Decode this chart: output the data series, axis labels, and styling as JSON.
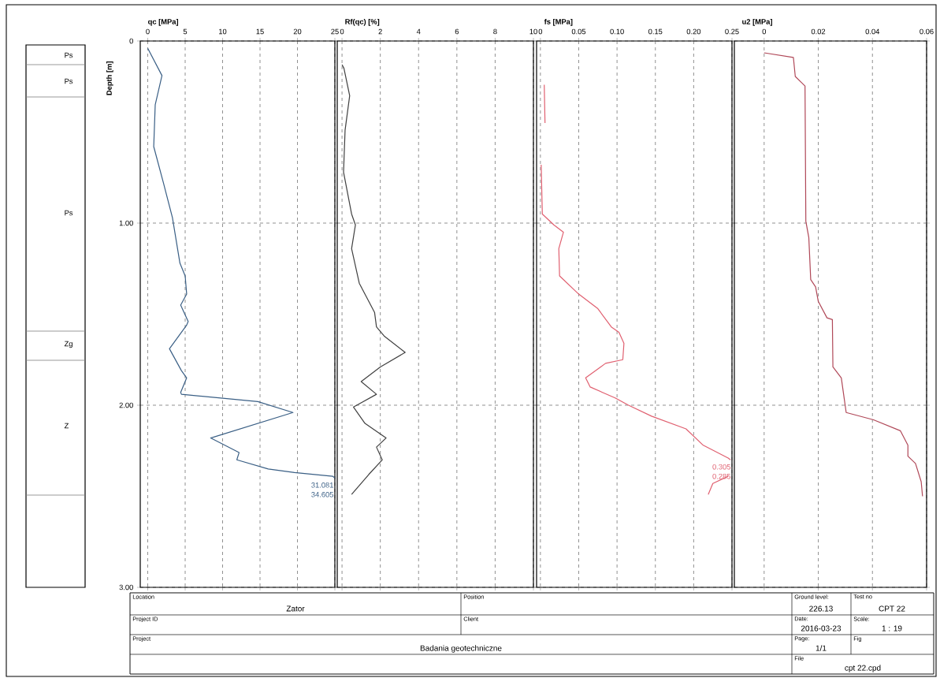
{
  "chart_data": [
    {
      "type": "other",
      "annotations": [
        "Ps",
        "Ps",
        "Ps",
        "Zg",
        "Z"
      ]
    },
    {
      "type": "line",
      "xlabel": "qc [MPa]",
      "ylabel": "Depth [m]",
      "xlim": [
        -1,
        25
      ],
      "ylim": [
        3,
        0
      ],
      "xticks": [
        0,
        5,
        10,
        15,
        20,
        25
      ],
      "yticks": [
        {
          "value": 0,
          "label": "0"
        },
        {
          "value": 1,
          "label": "1.00"
        },
        {
          "value": 2,
          "label": "2.00"
        },
        {
          "value": 3,
          "label": "3.00"
        }
      ],
      "grid": true,
      "color": "#3a5f85",
      "x": [
        0,
        1.9,
        1.0,
        0.8,
        2.1,
        3.3,
        4.3,
        5.0,
        5.2,
        4.4,
        5.4,
        5.2,
        2.9,
        4.5,
        5.2,
        4.4,
        4.5,
        14.7,
        19.4,
        8.4,
        12.2,
        11.9,
        16.1,
        19.6,
        24.7,
        25
      ],
      "values": [
        0.04,
        0.19,
        0.35,
        0.58,
        0.78,
        0.97,
        1.22,
        1.29,
        1.39,
        1.45,
        1.54,
        1.56,
        1.69,
        1.81,
        1.85,
        1.93,
        1.94,
        1.98,
        2.04,
        2.18,
        2.26,
        2.3,
        2.35,
        2.37,
        2.39,
        2.4
      ],
      "annotations": [
        "31.081",
        "34.605"
      ]
    },
    {
      "type": "line",
      "xlabel": "Rf(qc) [%]",
      "xlim": [
        -0.25,
        10
      ],
      "ylim": [
        3,
        0
      ],
      "xticks": [
        0,
        2,
        4,
        6,
        8,
        10
      ],
      "yticks": [
        0,
        1,
        2,
        3
      ],
      "tick_labels": "x",
      "grid": true,
      "color": "#404040",
      "x": [
        0,
        0.1,
        0.4,
        0.16,
        0.08,
        0.5,
        0.7,
        0.5,
        0.9,
        1.7,
        1.8,
        2.2,
        3.3,
        2.0,
        1.0,
        1.8,
        0.6,
        1.2,
        2.3,
        1.8,
        2.1,
        1.4,
        0.5
      ],
      "values": [
        0.13,
        0.15,
        0.3,
        0.49,
        0.72,
        0.95,
        1.01,
        1.14,
        1.33,
        1.49,
        1.57,
        1.62,
        1.71,
        1.79,
        1.87,
        1.94,
        2.01,
        2.1,
        2.18,
        2.23,
        2.3,
        2.38,
        2.49
      ]
    },
    {
      "type": "line",
      "xlabel": "fs [MPa]",
      "xlim": [
        -0.005,
        0.25
      ],
      "ylim": [
        3,
        0
      ],
      "xticks": [
        0,
        0.05,
        {
          "value": 0.1,
          "label": "0.10"
        },
        0.15,
        {
          "value": 0.2,
          "label": "0.20"
        },
        0.25
      ],
      "yticks": [
        0,
        1,
        2,
        3
      ],
      "tick_labels": "x",
      "grid": true,
      "color": "#e06070",
      "x": [
        0.005,
        0.006,
        null,
        0.001,
        0.0025,
        0.0175,
        0.03,
        0.024,
        0.025,
        0.05,
        0.075,
        0.0925,
        0.1025,
        0.109,
        0.1075,
        0.085,
        0.059,
        0.065,
        0.0975,
        0.115,
        0.145,
        0.19,
        0.2125,
        0.245,
        0.248,
        null,
        0.245,
        0.225,
        0.219
      ],
      "values": [
        0.24,
        0.45,
        null,
        0.68,
        0.95,
        1.01,
        1.05,
        1.14,
        1.29,
        1.39,
        1.47,
        1.57,
        1.6,
        1.66,
        1.75,
        1.77,
        1.85,
        1.9,
        1.96,
        2.0,
        2.06,
        2.13,
        2.22,
        2.29,
        2.3,
        null,
        2.39,
        2.43,
        2.49
      ],
      "annotations": [
        "0.305",
        "0.285"
      ]
    },
    {
      "type": "line",
      "xlabel": "u2 [MPa]",
      "xlim": [
        -0.011,
        0.06
      ],
      "ylim": [
        3,
        0
      ],
      "xticks": [
        0,
        0.02,
        0.04,
        0.06
      ],
      "yticks": [
        0,
        1,
        2,
        3
      ],
      "tick_labels": "x",
      "grid": true,
      "color": "#b04858",
      "x": [
        0,
        0.0108,
        0.0115,
        0.0151,
        0.0154,
        0.0165,
        0.0172,
        0.019,
        0.02,
        0.0232,
        0.0252,
        0.0254,
        0.0285,
        0.0303,
        0.0404,
        0.0503,
        0.0531,
        0.0531,
        0.0559,
        0.058,
        0.0585
      ],
      "values": [
        0.065,
        0.09,
        0.195,
        0.247,
        0.99,
        1.08,
        1.31,
        1.35,
        1.43,
        1.52,
        1.53,
        1.79,
        1.85,
        2.04,
        2.08,
        2.14,
        2.22,
        2.28,
        2.32,
        2.42,
        2.5
      ]
    },
    {
      "type": "other",
      "annotations": [
        "Location",
        "Zator",
        "Position",
        "Project ID",
        "Client",
        "Project",
        "Badania geotechniczne",
        "Ground level:",
        "226.13",
        "Test no",
        "CPT 22",
        "Date:",
        "2016-03-23",
        "Scale:",
        "1 : 19",
        "Page:",
        "1/1",
        "Fig",
        "File",
        "cpt 22.cpd"
      ]
    }
  ]
}
